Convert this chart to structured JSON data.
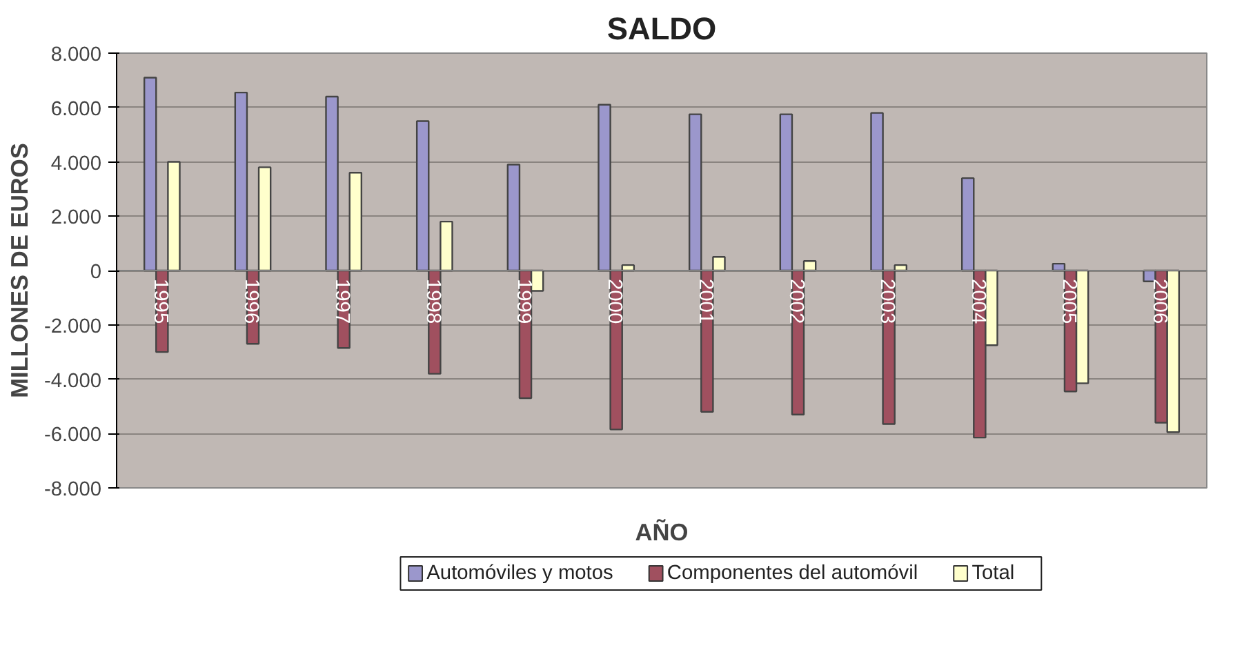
{
  "chart_data": {
    "type": "bar",
    "title": "SALDO",
    "xlabel": "AÑO",
    "ylabel": "MILLONES DE EUROS",
    "categories": [
      "1995",
      "1996",
      "1997",
      "1998",
      "1999",
      "2000",
      "2001",
      "2002",
      "2003",
      "2004",
      "2005",
      "2006"
    ],
    "series": [
      {
        "name": "Automóviles y motos",
        "color": "#9b97cc",
        "values": [
          7100,
          6550,
          6400,
          5500,
          3900,
          6100,
          5750,
          5750,
          5800,
          3400,
          250,
          -400
        ]
      },
      {
        "name": "Componentes del automóvil",
        "color": "#a0505f",
        "values": [
          -3000,
          -2700,
          -2850,
          -3800,
          -4700,
          -5850,
          -5200,
          -5300,
          -5650,
          -6150,
          -4450,
          -5600
        ]
      },
      {
        "name": "Total",
        "color": "#ffffcc",
        "values": [
          4000,
          3800,
          3600,
          1800,
          -750,
          200,
          500,
          350,
          200,
          -2750,
          -4150,
          -5950
        ]
      }
    ],
    "ylim": [
      -8000,
      8000
    ],
    "yticks": [
      {
        "value": -8000,
        "label": "-8.000"
      },
      {
        "value": -6000,
        "label": "-6.000"
      },
      {
        "value": -4000,
        "label": "-4.000"
      },
      {
        "value": -2000,
        "label": "-2.000"
      },
      0,
      {
        "value": 2000,
        "label": "2.000"
      },
      {
        "value": 4000,
        "label": "4.000"
      },
      {
        "value": 6000,
        "label": "6.000"
      },
      {
        "value": 8000,
        "label": "8.000"
      }
    ],
    "grid": "y",
    "legend": "bottom"
  }
}
